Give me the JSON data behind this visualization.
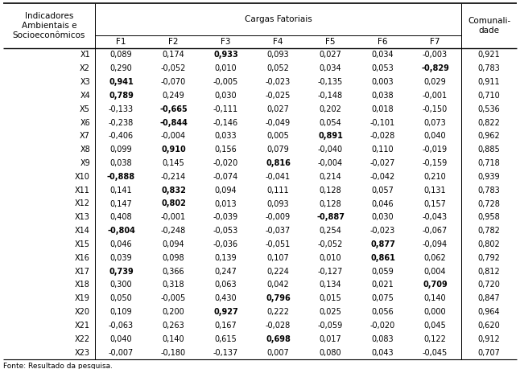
{
  "title_left": "Indicadores\nAmbientais e\nSocioeconômicos",
  "title_center": "Cargas Fatoriais",
  "title_right": "Comunali-\ndade",
  "col_headers": [
    "F1",
    "F2",
    "F3",
    "F4",
    "F5",
    "F6",
    "F7"
  ],
  "rows": [
    {
      "label": "X1",
      "vals": [
        "0,089",
        "0,174",
        "0,933",
        "0,093",
        "0,027",
        "0,034",
        "-0,003",
        "0,921"
      ],
      "bold": [
        2
      ]
    },
    {
      "label": "X2",
      "vals": [
        "0,290",
        "-0,052",
        "0,010",
        "0,052",
        "0,034",
        "0,053",
        "-0,829",
        "0,783"
      ],
      "bold": [
        6
      ]
    },
    {
      "label": "X3",
      "vals": [
        "0,941",
        "-0,070",
        "-0,005",
        "-0,023",
        "-0,135",
        "0,003",
        "0,029",
        "0,911"
      ],
      "bold": [
        0
      ]
    },
    {
      "label": "X4",
      "vals": [
        "0,789",
        "0,249",
        "0,030",
        "-0,025",
        "-0,148",
        "0,038",
        "-0,001",
        "0,710"
      ],
      "bold": [
        0
      ]
    },
    {
      "label": "X5",
      "vals": [
        "-0,133",
        "-0,665",
        "-0,111",
        "0,027",
        "0,202",
        "0,018",
        "-0,150",
        "0,536"
      ],
      "bold": [
        1
      ]
    },
    {
      "label": "X6",
      "vals": [
        "-0,238",
        "-0,844",
        "-0,146",
        "-0,049",
        "0,054",
        "-0,101",
        "0,073",
        "0,822"
      ],
      "bold": [
        1
      ]
    },
    {
      "label": "X7",
      "vals": [
        "-0,406",
        "-0,004",
        "0,033",
        "0,005",
        "0,891",
        "-0,028",
        "0,040",
        "0,962"
      ],
      "bold": [
        4
      ]
    },
    {
      "label": "X8",
      "vals": [
        "0,099",
        "0,910",
        "0,156",
        "0,079",
        "-0,040",
        "0,110",
        "-0,019",
        "0,885"
      ],
      "bold": [
        1
      ]
    },
    {
      "label": "X9",
      "vals": [
        "0,038",
        "0,145",
        "-0,020",
        "0,816",
        "-0,004",
        "-0,027",
        "-0,159",
        "0,718"
      ],
      "bold": [
        3
      ]
    },
    {
      "label": "X10",
      "vals": [
        "-0,888",
        "-0,214",
        "-0,074",
        "-0,041",
        "0,214",
        "-0,042",
        "0,210",
        "0,939"
      ],
      "bold": [
        0
      ]
    },
    {
      "label": "X11",
      "vals": [
        "0,141",
        "0,832",
        "0,094",
        "0,111",
        "0,128",
        "0,057",
        "0,131",
        "0,783"
      ],
      "bold": [
        1
      ]
    },
    {
      "label": "X12",
      "vals": [
        "0,147",
        "0,802",
        "0,013",
        "0,093",
        "0,128",
        "0,046",
        "0,157",
        "0,728"
      ],
      "bold": [
        1
      ]
    },
    {
      "label": "X13",
      "vals": [
        "0,408",
        "-0,001",
        "-0,039",
        "-0,009",
        "-0,887",
        "0,030",
        "-0,043",
        "0,958"
      ],
      "bold": [
        4
      ]
    },
    {
      "label": "X14",
      "vals": [
        "-0,804",
        "-0,248",
        "-0,053",
        "-0,037",
        "0,254",
        "-0,023",
        "-0,067",
        "0,782"
      ],
      "bold": [
        0
      ]
    },
    {
      "label": "X15",
      "vals": [
        "0,046",
        "0,094",
        "-0,036",
        "-0,051",
        "-0,052",
        "0,877",
        "-0,094",
        "0,802"
      ],
      "bold": [
        5
      ]
    },
    {
      "label": "X16",
      "vals": [
        "0,039",
        "0,098",
        "0,139",
        "0,107",
        "0,010",
        "0,861",
        "0,062",
        "0,792"
      ],
      "bold": [
        5
      ]
    },
    {
      "label": "X17",
      "vals": [
        "0,739",
        "0,366",
        "0,247",
        "0,224",
        "-0,127",
        "0,059",
        "0,004",
        "0,812"
      ],
      "bold": [
        0
      ]
    },
    {
      "label": "X18",
      "vals": [
        "0,300",
        "0,318",
        "0,063",
        "0,042",
        "0,134",
        "0,021",
        "0,709",
        "0,720"
      ],
      "bold": [
        6
      ]
    },
    {
      "label": "X19",
      "vals": [
        "0,050",
        "-0,005",
        "0,430",
        "0,796",
        "0,015",
        "0,075",
        "0,140",
        "0,847"
      ],
      "bold": [
        3
      ]
    },
    {
      "label": "X20",
      "vals": [
        "0,109",
        "0,200",
        "0,927",
        "0,222",
        "0,025",
        "0,056",
        "0,000",
        "0,964"
      ],
      "bold": [
        2
      ]
    },
    {
      "label": "X21",
      "vals": [
        "-0,063",
        "0,263",
        "0,167",
        "-0,028",
        "-0,059",
        "-0,020",
        "0,045",
        "0,620"
      ],
      "bold": []
    },
    {
      "label": "X22",
      "vals": [
        "0,040",
        "0,140",
        "0,615",
        "0,698",
        "0,017",
        "0,083",
        "0,122",
        "0,912"
      ],
      "bold": [
        3
      ]
    },
    {
      "label": "X23",
      "vals": [
        "-0,007",
        "-0,180",
        "-0,137",
        "0,007",
        "0,080",
        "0,043",
        "-0,045",
        "0,707"
      ],
      "bold": []
    }
  ],
  "footer": "Fonte: Resultado da pesquisa.",
  "bg_color": "#ffffff",
  "font_size": 7.0,
  "header_font_size": 7.5
}
